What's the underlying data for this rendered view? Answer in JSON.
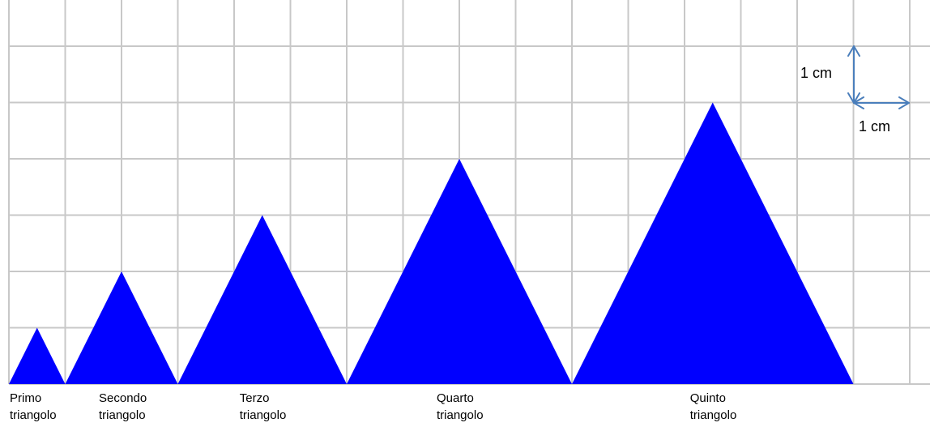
{
  "diagram": {
    "grid_unit": "1 cm",
    "grid_columns": 16,
    "grid_rows": 7,
    "triangles": [
      {
        "name": "primo",
        "label_line1": "Primo",
        "label_line2": "triangolo",
        "base_cells": 1,
        "height_cells": 1
      },
      {
        "name": "secondo",
        "label_line1": "Secondo",
        "label_line2": "triangolo",
        "base_cells": 2,
        "height_cells": 2
      },
      {
        "name": "terzo",
        "label_line1": "Terzo",
        "label_line2": "triangolo",
        "base_cells": 3,
        "height_cells": 3
      },
      {
        "name": "quarto",
        "label_line1": "Quarto",
        "label_line2": "triangolo",
        "base_cells": 4,
        "height_cells": 4
      },
      {
        "name": "quinto",
        "label_line1": "Quinto",
        "label_line2": "triangolo",
        "base_cells": 5,
        "height_cells": 5
      }
    ],
    "scale": {
      "vertical_label": "1 cm",
      "horizontal_label": "1 cm"
    },
    "colors": {
      "triangle_fill": "#0000FF",
      "grid_line": "#C8C8C8",
      "arrow": "#4A7EBB"
    }
  }
}
